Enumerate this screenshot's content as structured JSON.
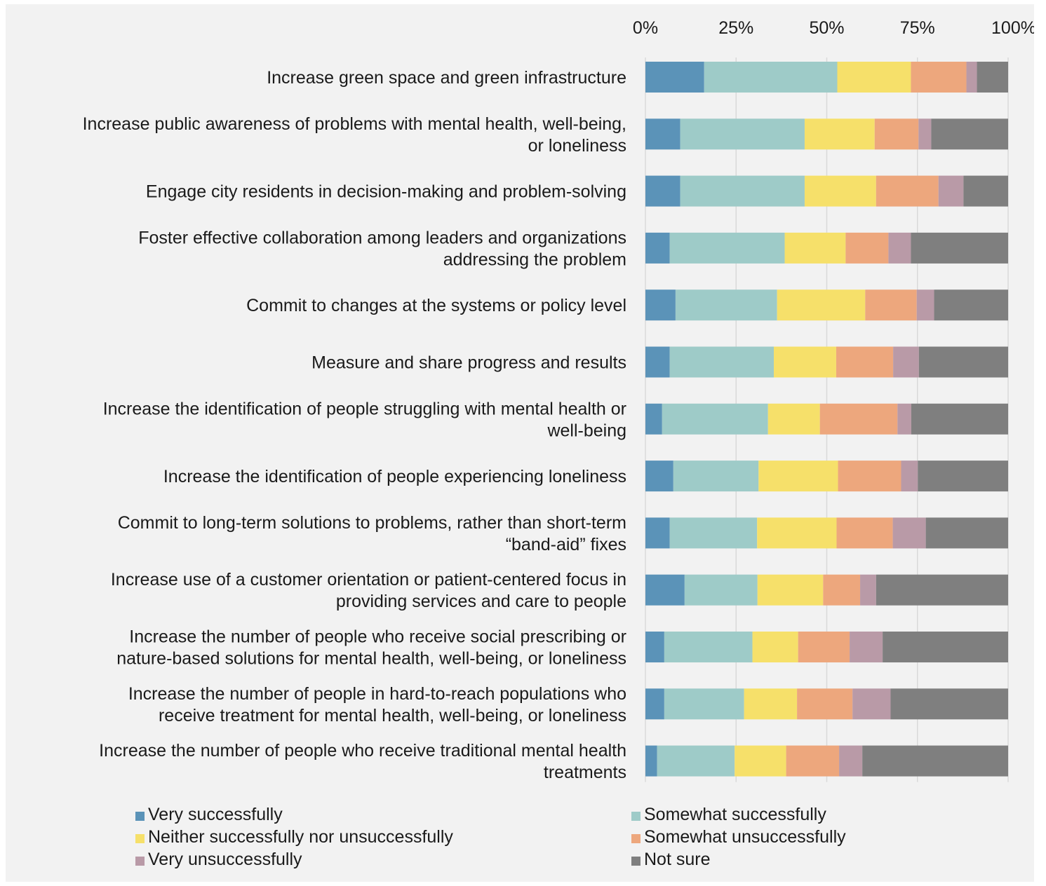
{
  "chart_data": {
    "type": "bar",
    "orientation": "horizontal",
    "stacked": "percent",
    "xlim": [
      0,
      100
    ],
    "x_ticks": [
      "0%",
      "25%",
      "50%",
      "75%",
      "100%"
    ],
    "x_axis_position": "top",
    "grid": true,
    "legend_position": "bottom",
    "categories": [
      [
        "Increase green space and green infrastructure"
      ],
      [
        "Increase public awareness of problems with mental health, well-being,",
        "or loneliness"
      ],
      [
        "Engage city residents in decision-making and problem-solving"
      ],
      [
        "Foster effective collaboration among leaders and organizations",
        "addressing the problem"
      ],
      [
        "Commit to changes at the systems or policy level"
      ],
      [
        "Measure and share progress and results"
      ],
      [
        "Increase the identification of people struggling with mental health or",
        "well-being"
      ],
      [
        "Increase the identification of people experiencing loneliness"
      ],
      [
        "Commit to long-term solutions to problems, rather than short-term",
        "“band-aid” fixes"
      ],
      [
        "Increase use of a customer orientation or patient-centered focus in",
        "providing services and care to people"
      ],
      [
        "Increase the number of people who receive social prescribing or",
        "nature-based solutions for mental health, well-being, or loneliness"
      ],
      [
        "Increase the number of people in hard-to-reach populations who",
        "receive treatment for mental health, well-being, or loneliness"
      ],
      [
        "Increase the number of people who receive traditional mental health",
        "treatments"
      ]
    ],
    "series": [
      {
        "name": "Very successfully",
        "color": "#5b93b8",
        "values": [
          16.2,
          9.6,
          9.6,
          6.7,
          8.3,
          6.7,
          4.6,
          7.7,
          6.7,
          10.8,
          5.2,
          5.2,
          3.2
        ]
      },
      {
        "name": "Somewhat successfully",
        "color": "#9ecbc8",
        "values": [
          36.7,
          34.3,
          34.3,
          31.7,
          28.0,
          28.7,
          29.2,
          23.5,
          24.1,
          20.1,
          24.3,
          22.0,
          21.4
        ]
      },
      {
        "name": "Neither successfully nor unsuccessfully",
        "color": "#f6e06a",
        "values": [
          20.3,
          19.3,
          19.7,
          16.8,
          24.3,
          17.2,
          14.3,
          21.9,
          21.9,
          18.1,
          12.6,
          14.6,
          14.2
        ]
      },
      {
        "name": "Somewhat unsuccessfully",
        "color": "#eda77d",
        "values": [
          15.3,
          12.1,
          17.2,
          11.8,
          14.2,
          15.7,
          21.4,
          17.4,
          15.5,
          10.2,
          14.2,
          15.3,
          14.6
        ]
      },
      {
        "name": "Very unsuccessfully",
        "color": "#b99aa7",
        "values": [
          2.9,
          3.5,
          6.9,
          6.2,
          4.8,
          7.1,
          3.8,
          4.6,
          9.1,
          4.4,
          9.1,
          10.5,
          6.4
        ]
      },
      {
        "name": "Not sure",
        "color": "#7f7f7f",
        "values": [
          8.6,
          21.2,
          12.3,
          26.8,
          20.4,
          24.6,
          26.7,
          24.9,
          22.7,
          36.4,
          34.6,
          32.4,
          40.2
        ]
      }
    ]
  }
}
